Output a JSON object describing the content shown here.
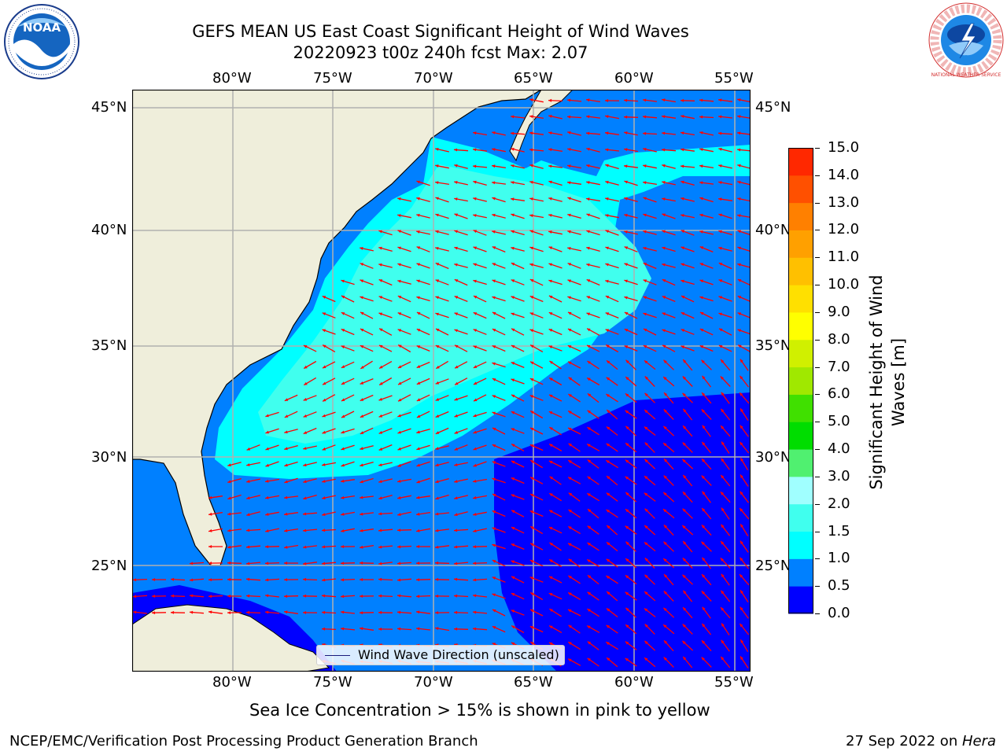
{
  "title": {
    "line1": "GEFS MEAN US East Coast Significant Height of Wind Waves",
    "line2": "20220923 t00z 240h fcst   Max: 2.07"
  },
  "logos": {
    "noaa_text": "NOAA",
    "nws_ring_text": "NATIONAL WEATHER SERVICE"
  },
  "map": {
    "lon_labels": [
      "80°W",
      "75°W",
      "70°W",
      "65°W",
      "60°W",
      "55°W"
    ],
    "lat_labels": [
      "45°N",
      "40°N",
      "35°N",
      "30°N",
      "25°N"
    ],
    "extent": {
      "lon_min": -85,
      "lon_max": -54.5,
      "lat_min": 20,
      "lat_max": 46
    },
    "legend_label": "Wind Wave Direction (unscaled)",
    "arrow_color": "#ff0000",
    "land_color": "#efeedb",
    "wave_colors": {
      "0.0-0.5": "#0000ff",
      "0.5-1.0": "#0080ff",
      "1.0-1.5": "#00ffff",
      "1.5-2.0": "#33ffee"
    }
  },
  "colorbar": {
    "label_line1": "Significant Height of Wind",
    "label_line2": "Waves [m]",
    "ticks": [
      "0.0",
      "0.5",
      "1.0",
      "1.5",
      "2.0",
      "3.0",
      "4.0",
      "5.0",
      "6.0",
      "7.0",
      "8.0",
      "9.0",
      "10.0",
      "11.0",
      "12.0",
      "13.0",
      "14.0",
      "15.0"
    ],
    "colors": [
      "#0000ff",
      "#0080ff",
      "#00ffff",
      "#40ffee",
      "#a0ffff",
      "#50f070",
      "#00dd00",
      "#40e000",
      "#a0e800",
      "#d0f000",
      "#ffff00",
      "#ffe000",
      "#ffc000",
      "#ffa000",
      "#ff8000",
      "#ff5000",
      "#ff2800",
      "#ff0000"
    ]
  },
  "subtitle": "Sea Ice Concentration > 15% is shown in pink to yellow",
  "footer_left": "NCEP/EMC/Verification Post Processing Product Generation Branch",
  "footer_right_prefix": "27 Sep 2022 on ",
  "footer_right_host": "Hera"
}
